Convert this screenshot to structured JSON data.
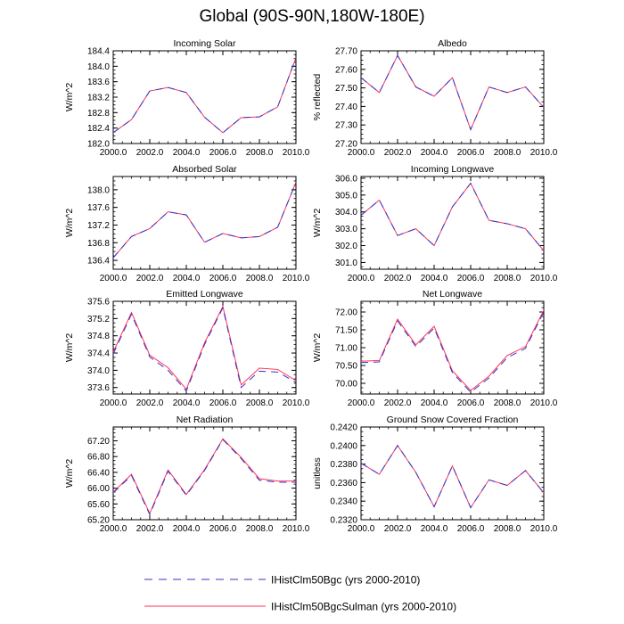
{
  "title": "Global (90S-90N,180W-180E)",
  "colors": {
    "series_1": "#3333cc",
    "series_2": "#ff3355"
  },
  "legend": [
    {
      "label": "IHistClm50Bgc (yrs 2000-2010)",
      "style": "dashed",
      "color": "#3333cc"
    },
    {
      "label": "IHistClm50BgcSulman (yrs 2000-2010)",
      "style": "solid",
      "color": "#ff3355"
    }
  ],
  "chart_data": [
    {
      "type": "line",
      "title": "Incoming Solar",
      "ylabel": "W/m^2",
      "x": [
        2000,
        2001,
        2002,
        2003,
        2004,
        2005,
        2006,
        2007,
        2008,
        2009,
        2010
      ],
      "xlim": [
        2000,
        2010
      ],
      "xticks": [
        "2000.0",
        "2002.0",
        "2004.0",
        "2006.0",
        "2008.0",
        "2010.0"
      ],
      "ylim": [
        182.0,
        184.4
      ],
      "yticks": [
        "182.0",
        "182.4",
        "182.8",
        "183.2",
        "183.6",
        "184.0",
        "184.4"
      ],
      "series": [
        {
          "values": [
            182.28,
            182.62,
            183.36,
            183.45,
            183.32,
            182.68,
            182.28,
            182.67,
            182.69,
            182.95,
            184.22
          ]
        },
        {
          "values": [
            182.28,
            182.62,
            183.36,
            183.45,
            183.32,
            182.68,
            182.28,
            182.67,
            182.69,
            182.95,
            184.22
          ]
        }
      ]
    },
    {
      "type": "line",
      "title": "Albedo",
      "ylabel": "% reflected",
      "x": [
        2000,
        2001,
        2002,
        2003,
        2004,
        2005,
        2006,
        2007,
        2008,
        2009,
        2010
      ],
      "xlim": [
        2000,
        2010
      ],
      "xticks": [
        "2000.0",
        "2002.0",
        "2004.0",
        "2006.0",
        "2008.0",
        "2010.0"
      ],
      "ylim": [
        27.2,
        27.7
      ],
      "yticks": [
        "27.20",
        "27.30",
        "27.40",
        "27.50",
        "27.60",
        "27.70"
      ],
      "series": [
        {
          "values": [
            27.555,
            27.475,
            27.675,
            27.505,
            27.455,
            27.555,
            27.275,
            27.505,
            27.475,
            27.505,
            27.395
          ]
        },
        {
          "values": [
            27.555,
            27.475,
            27.675,
            27.505,
            27.455,
            27.555,
            27.275,
            27.505,
            27.475,
            27.505,
            27.395
          ]
        }
      ]
    },
    {
      "type": "line",
      "title": "Absorbed Solar",
      "ylabel": "W/m^2",
      "x": [
        2000,
        2001,
        2002,
        2003,
        2004,
        2005,
        2006,
        2007,
        2008,
        2009,
        2010
      ],
      "xlim": [
        2000,
        2010
      ],
      "xticks": [
        "2000.0",
        "2002.0",
        "2004.0",
        "2006.0",
        "2008.0",
        "2010.0"
      ],
      "ylim": [
        136.2,
        138.3
      ],
      "yticks": [
        "136.4",
        "136.8",
        "137.2",
        "137.6",
        "138.0"
      ],
      "series": [
        {
          "values": [
            136.46,
            136.94,
            137.12,
            137.5,
            137.43,
            136.81,
            137.01,
            136.91,
            136.94,
            137.15,
            138.17
          ]
        },
        {
          "values": [
            136.46,
            136.94,
            137.12,
            137.5,
            137.43,
            136.81,
            137.01,
            136.91,
            136.94,
            137.15,
            138.17
          ]
        }
      ]
    },
    {
      "type": "line",
      "title": "Incoming Longwave",
      "ylabel": "W/m^2",
      "x": [
        2000,
        2001,
        2002,
        2003,
        2004,
        2005,
        2006,
        2007,
        2008,
        2009,
        2010
      ],
      "xlim": [
        2000,
        2010
      ],
      "xticks": [
        "2000.0",
        "2002.0",
        "2004.0",
        "2006.0",
        "2008.0",
        "2010.0"
      ],
      "ylim": [
        300.6,
        306.1
      ],
      "yticks": [
        "301.0",
        "302.0",
        "303.0",
        "304.0",
        "305.0",
        "306.0"
      ],
      "series": [
        {
          "values": [
            303.8,
            304.7,
            302.6,
            303.0,
            302.0,
            304.3,
            305.7,
            303.5,
            303.3,
            303.0,
            301.7
          ]
        },
        {
          "values": [
            303.8,
            304.7,
            302.6,
            303.0,
            302.0,
            304.3,
            305.7,
            303.5,
            303.3,
            303.0,
            301.7
          ]
        }
      ]
    },
    {
      "type": "line",
      "title": "Emitted Longwave",
      "ylabel": "W/m^2",
      "x": [
        2000,
        2001,
        2002,
        2003,
        2004,
        2005,
        2006,
        2007,
        2008,
        2009,
        2010
      ],
      "xlim": [
        2000,
        2010
      ],
      "xticks": [
        "2000.0",
        "2002.0",
        "2004.0",
        "2006.0",
        "2008.0",
        "2010.0"
      ],
      "ylim": [
        373.45,
        375.6
      ],
      "yticks": [
        "373.6",
        "374.0",
        "374.4",
        "374.8",
        "375.2",
        "375.6"
      ],
      "series": [
        {
          "values": [
            374.38,
            375.3,
            374.31,
            374.0,
            373.52,
            374.6,
            375.45,
            373.6,
            373.98,
            373.96,
            373.72
          ]
        },
        {
          "values": [
            374.42,
            375.34,
            374.35,
            374.06,
            373.56,
            374.64,
            375.48,
            373.66,
            374.05,
            374.02,
            373.76
          ]
        }
      ]
    },
    {
      "type": "line",
      "title": "Net Longwave",
      "ylabel": "W/m^2",
      "x": [
        2000,
        2001,
        2002,
        2003,
        2004,
        2005,
        2006,
        2007,
        2008,
        2009,
        2010
      ],
      "xlim": [
        2000,
        2010
      ],
      "xticks": [
        "2000.0",
        "2002.0",
        "2004.0",
        "2006.0",
        "2008.0",
        "2010.0"
      ],
      "ylim": [
        69.7,
        72.3
      ],
      "yticks": [
        "70.00",
        "70.50",
        "71.00",
        "71.50",
        "72.00"
      ],
      "series": [
        {
          "values": [
            70.58,
            70.6,
            71.75,
            71.03,
            71.55,
            70.3,
            69.75,
            70.15,
            70.72,
            70.98,
            72.0
          ]
        },
        {
          "values": [
            70.62,
            70.64,
            71.8,
            71.08,
            71.6,
            70.35,
            69.8,
            70.2,
            70.78,
            71.03,
            72.05
          ]
        }
      ]
    },
    {
      "type": "line",
      "title": "Net Radiation",
      "ylabel": "W/m^2",
      "x": [
        2000,
        2001,
        2002,
        2003,
        2004,
        2005,
        2006,
        2007,
        2008,
        2009,
        2010
      ],
      "xlim": [
        2000,
        2010
      ],
      "xticks": [
        "2000.0",
        "2002.0",
        "2004.0",
        "2006.0",
        "2008.0",
        "2010.0"
      ],
      "ylim": [
        65.2,
        67.55
      ],
      "yticks": [
        "65.20",
        "65.60",
        "66.00",
        "66.40",
        "66.80",
        "67.20"
      ],
      "series": [
        {
          "values": [
            65.88,
            66.32,
            65.33,
            66.43,
            65.82,
            66.45,
            67.23,
            66.75,
            66.2,
            66.15,
            66.15
          ]
        },
        {
          "values": [
            65.9,
            66.35,
            65.36,
            66.46,
            65.84,
            66.47,
            67.25,
            66.78,
            66.24,
            66.18,
            66.18
          ]
        }
      ]
    },
    {
      "type": "line",
      "title": "Ground Snow Covered Fraction",
      "ylabel": "unitless",
      "x": [
        2000,
        2001,
        2002,
        2003,
        2004,
        2005,
        2006,
        2007,
        2008,
        2009,
        2010
      ],
      "xlim": [
        2000,
        2010
      ],
      "xticks": [
        "2000.0",
        "2002.0",
        "2004.0",
        "2006.0",
        "2008.0",
        "2010.0"
      ],
      "ylim": [
        0.232,
        0.242
      ],
      "yticks": [
        "0.2320",
        "0.2340",
        "0.2360",
        "0.2380",
        "0.2400",
        "0.2420"
      ],
      "series": [
        {
          "values": [
            0.2381,
            0.2369,
            0.24,
            0.2371,
            0.2334,
            0.2378,
            0.2333,
            0.2363,
            0.2357,
            0.2373,
            0.2349
          ]
        },
        {
          "values": [
            0.2381,
            0.2369,
            0.24,
            0.2371,
            0.2334,
            0.2378,
            0.2333,
            0.2363,
            0.2357,
            0.2373,
            0.2349
          ]
        }
      ]
    }
  ]
}
